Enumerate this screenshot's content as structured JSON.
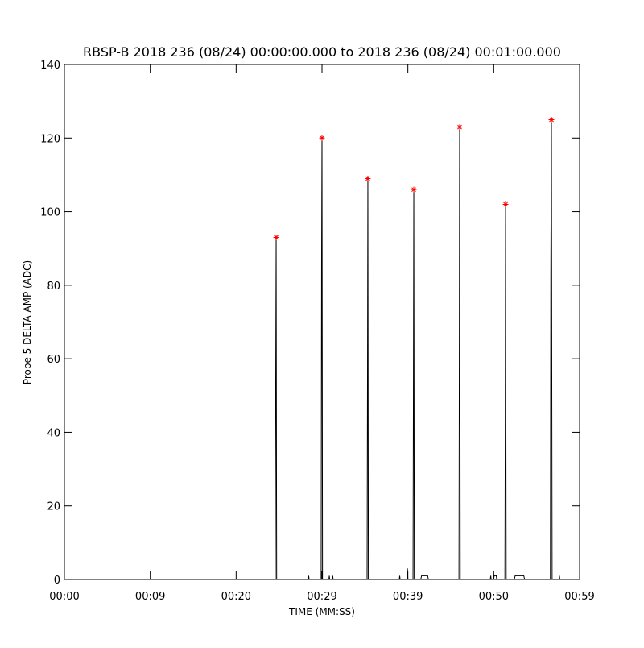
{
  "chart_data": {
    "type": "line",
    "title": "RBSP-B 2018 236 (08/24) 00:00:00.000 to 2018 236 (08/24) 00:01:00.000",
    "xlabel": "TIME (MM:SS)",
    "ylabel": "Probe 5 DELTA AMP (ADC)",
    "xlim": [
      0,
      60
    ],
    "xticks": [
      {
        "value": 0,
        "label": "00:00"
      },
      {
        "value": 10,
        "label": "00:09"
      },
      {
        "value": 20,
        "label": "00:20"
      },
      {
        "value": 30,
        "label": "00:29"
      },
      {
        "value": 40,
        "label": "00:39"
      },
      {
        "value": 50,
        "label": "00:50"
      },
      {
        "value": 60,
        "label": "00:59"
      }
    ],
    "ylim": [
      0,
      140
    ],
    "yticks": [
      0,
      20,
      40,
      60,
      80,
      100,
      120,
      140
    ],
    "series": [
      {
        "type": "line",
        "color": "#000000",
        "x": [
          0,
          24.55,
          24.6,
          24.66,
          24.72,
          28.4,
          28.45,
          28.5,
          29.9,
          29.95,
          30.0,
          30.06,
          30.8,
          30.85,
          30.9,
          31.2,
          31.25,
          31.3,
          35.25,
          35.3,
          35.34,
          35.4,
          39.0,
          39.05,
          39.1,
          39.9,
          39.95,
          40.0,
          40.6,
          40.65,
          40.69,
          40.75,
          41.5,
          41.6,
          42.3,
          42.4,
          45.95,
          46.0,
          46.03,
          46.1,
          49.6,
          49.65,
          49.7,
          50.0,
          50.05,
          50.3,
          50.35,
          51.3,
          51.34,
          51.38,
          51.45,
          52.4,
          52.5,
          53.5,
          53.6,
          56.6,
          56.65,
          56.72,
          56.8,
          57.6,
          57.65,
          57.7,
          58.0
        ],
        "values": [
          0,
          0,
          46,
          93,
          0,
          0,
          1,
          0,
          0,
          86,
          120,
          0,
          0,
          1,
          0,
          0,
          1,
          0,
          0,
          57,
          109,
          0,
          0,
          1,
          0,
          0,
          3,
          0,
          0,
          56,
          106,
          0,
          0,
          1,
          1,
          0,
          0,
          72,
          123,
          0,
          0,
          1,
          0,
          0,
          1,
          1,
          0,
          0,
          41,
          102,
          0,
          0,
          1,
          1,
          0,
          0,
          84,
          125,
          0,
          0,
          1,
          0,
          0
        ]
      },
      {
        "type": "scatter",
        "color": "#ff0000",
        "x": [
          24.66,
          30.0,
          35.34,
          40.69,
          46.03,
          51.38,
          56.72
        ],
        "values": [
          93,
          120,
          109,
          106,
          123,
          102,
          125
        ]
      }
    ]
  }
}
